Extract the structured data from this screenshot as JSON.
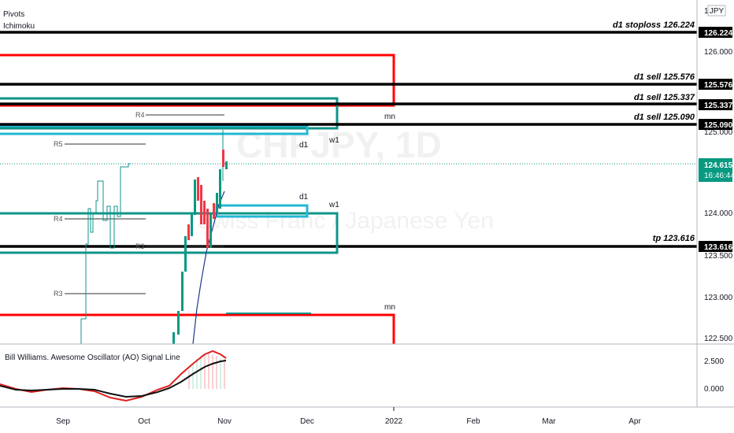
{
  "header": {
    "indicators": [
      "Pivots",
      "Ichimoku"
    ]
  },
  "watermark": {
    "symbol": "CHFJPY, 1D",
    "description": "Swiss Franc / Japanese Yen"
  },
  "price_axis": {
    "currency": "JPY",
    "ticks": [
      "12",
      "126.000",
      "125.000",
      "124.000",
      "123.500",
      "123.000",
      "122.500"
    ],
    "current_price": "124.615",
    "countdown": "16:46:44"
  },
  "time_axis": {
    "ticks": [
      "Sep",
      "Oct",
      "Nov",
      "Dec",
      "2022",
      "Feb",
      "Mar",
      "Apr"
    ]
  },
  "levels": [
    {
      "label": "d1 stoploss 126.224",
      "price_box": "126.224"
    },
    {
      "label": "d1 sell 125.576",
      "price_box": "125.576"
    },
    {
      "label": "d1 sell 125.337",
      "price_box": "125.337"
    },
    {
      "label": "d1 sell 125.090",
      "price_box": "125.090"
    },
    {
      "label": "tp 123.616",
      "price_box": "123.616"
    }
  ],
  "zone_labels": {
    "mn_top": "mn",
    "d1_top": "d1",
    "w1_top": "w1",
    "d1_mid": "d1",
    "w1_mid": "w1",
    "mn_bottom": "mn"
  },
  "pivots": {
    "r4_top": "R4",
    "r5": "R5",
    "r4_mid": "R4",
    "r3_mid": "R3",
    "r3_low": "R3"
  },
  "oscillator": {
    "title": "Bill Williams. Awesome Oscillator (AO) Signal Line",
    "ticks": [
      "2.500",
      "0.000"
    ]
  },
  "colors": {
    "red_zone": "#ff0000",
    "teal_zone": "#0f9488",
    "cyan_zone": "#22b8d4",
    "black_line": "#000000",
    "candle_up": "#089981",
    "candle_down": "#f23645",
    "price_tag": "#089981"
  }
}
